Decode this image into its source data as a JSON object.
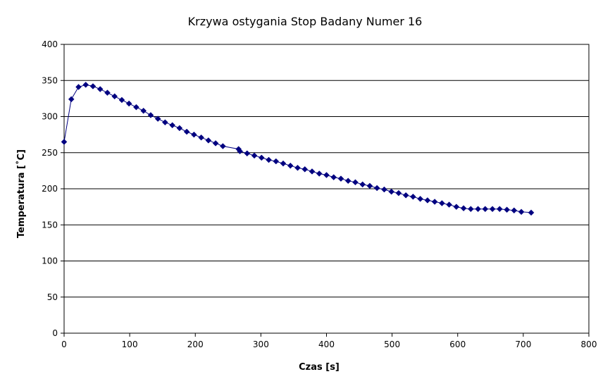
{
  "chart_data": {
    "type": "line",
    "title": "Krzywa ostygania Stop Badany Numer 16",
    "xlabel": "Czas [s]",
    "ylabel": "Temperatura [˚C]",
    "xlim": [
      0,
      800
    ],
    "ylim": [
      0,
      400
    ],
    "xticks": [
      0,
      100,
      200,
      300,
      400,
      500,
      600,
      700,
      800
    ],
    "yticks": [
      0,
      50,
      100,
      150,
      200,
      250,
      300,
      350,
      400
    ],
    "grid": "horizontal",
    "legend": "none",
    "series_color": "#000080",
    "x": [
      0,
      11,
      22,
      33,
      44,
      55,
      66,
      77,
      88,
      99,
      110,
      121,
      132,
      143,
      154,
      165,
      176,
      187,
      198,
      209,
      220,
      231,
      242,
      266,
      268,
      279,
      290,
      301,
      312,
      323,
      334,
      345,
      356,
      367,
      378,
      389,
      400,
      411,
      422,
      433,
      444,
      455,
      466,
      477,
      488,
      499,
      510,
      521,
      532,
      543,
      554,
      565,
      576,
      587,
      598,
      609,
      620,
      631,
      642,
      653,
      664,
      675,
      686,
      697,
      712
    ],
    "y": [
      265,
      324,
      341,
      344,
      342,
      338,
      333,
      328,
      323,
      318,
      313,
      308,
      302,
      297,
      292,
      288,
      284,
      279,
      275,
      271,
      267,
      263,
      259,
      255,
      252,
      249,
      246,
      243,
      240,
      238,
      235,
      232,
      229,
      227,
      224,
      221,
      219,
      216,
      214,
      211,
      209,
      206,
      204,
      201,
      199,
      196,
      194,
      191,
      189,
      186,
      184,
      182,
      180,
      178,
      175,
      173,
      172,
      172,
      172,
      172,
      172,
      171,
      170,
      168,
      167
    ]
  }
}
